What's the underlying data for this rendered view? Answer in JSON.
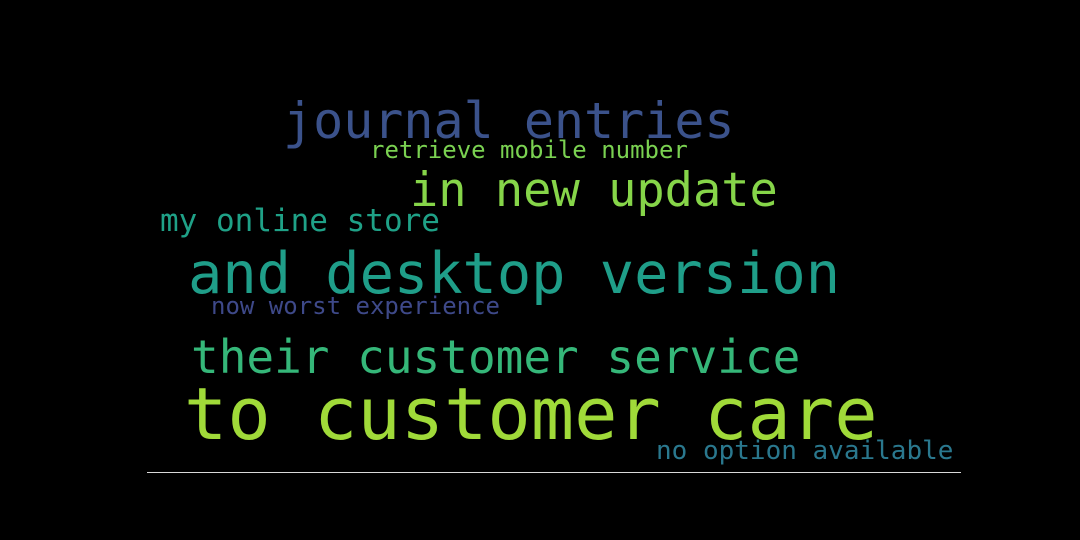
{
  "phrases": [
    {
      "text": "journal entries",
      "color": "#3b528b"
    },
    {
      "text": "retrieve mobile number",
      "color": "#7ad151"
    },
    {
      "text": "in new update",
      "color": "#86d549"
    },
    {
      "text": "my online store",
      "color": "#1fa187"
    },
    {
      "text": "and desktop version",
      "color": "#1f9e89"
    },
    {
      "text": "now worst experience",
      "color": "#3e4989"
    },
    {
      "text": "their customer service",
      "color": "#35b779"
    },
    {
      "text": "to customer care",
      "color": "#a0da39"
    },
    {
      "text": "no option available",
      "color": "#2a788e"
    }
  ]
}
